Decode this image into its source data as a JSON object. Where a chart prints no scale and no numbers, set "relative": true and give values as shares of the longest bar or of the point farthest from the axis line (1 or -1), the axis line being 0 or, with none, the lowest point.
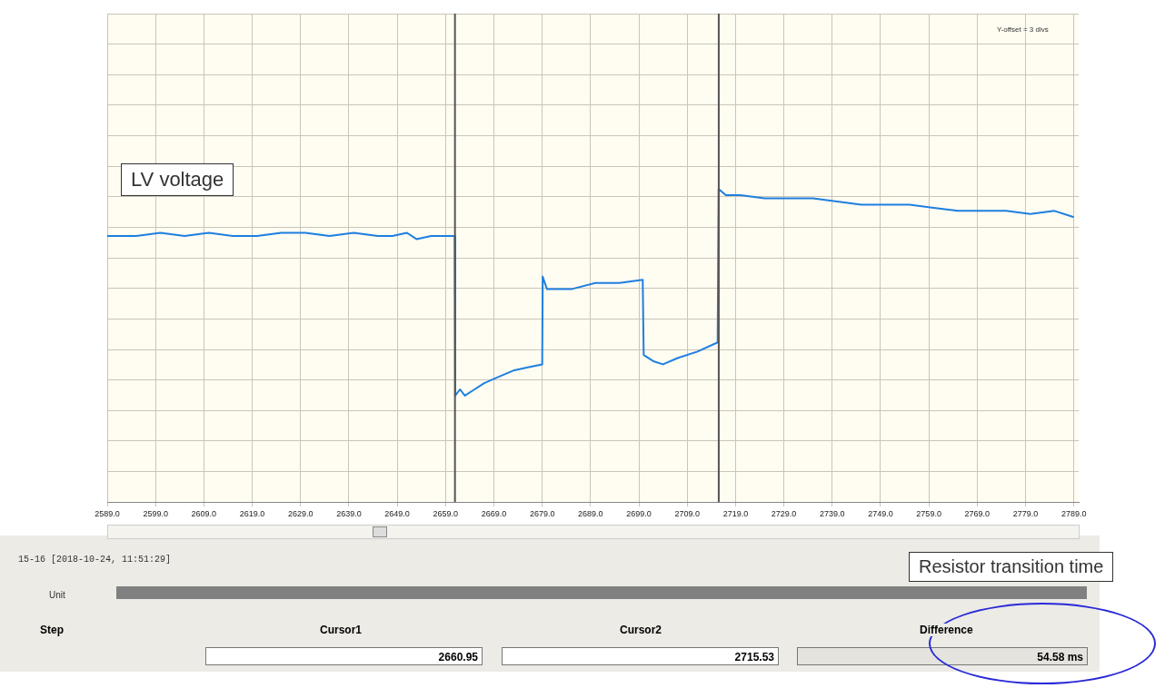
{
  "chart_data": {
    "type": "line",
    "relative": true,
    "xlim": [
      2589,
      2790
    ],
    "xticks": [
      {
        "value": 2589,
        "label": "2589.0"
      },
      {
        "value": 2599,
        "label": "2599.0"
      },
      {
        "value": 2609,
        "label": "2609.0"
      },
      {
        "value": 2619,
        "label": "2619.0"
      },
      {
        "value": 2629,
        "label": "2629.0"
      },
      {
        "value": 2639,
        "label": "2639.0"
      },
      {
        "value": 2649,
        "label": "2649.0"
      },
      {
        "value": 2659,
        "label": "2659.0"
      },
      {
        "value": 2669,
        "label": "2669.0"
      },
      {
        "value": 2679,
        "label": "2679.0"
      },
      {
        "value": 2689,
        "label": "2689.0"
      },
      {
        "value": 2699,
        "label": "2699.0"
      },
      {
        "value": 2709,
        "label": "2709.0"
      },
      {
        "value": 2719,
        "label": "2719.0"
      },
      {
        "value": 2729,
        "label": "2729.0"
      },
      {
        "value": 2739,
        "label": "2739.0"
      },
      {
        "value": 2749,
        "label": "2749.0"
      },
      {
        "value": 2759,
        "label": "2759.0"
      },
      {
        "value": 2769,
        "label": "2769.0"
      },
      {
        "value": 2779,
        "label": "2779.0"
      },
      {
        "value": 2789,
        "label": "2789.0"
      }
    ],
    "grid": true,
    "tick_labels": "x",
    "legend": false,
    "marker": "none",
    "line_style": "solid",
    "series": [
      {
        "name": "LV voltage",
        "color": "#1e7fe0",
        "x": [
          2589,
          2595,
          2600,
          2605,
          2610,
          2615,
          2620,
          2625,
          2630,
          2635,
          2640,
          2645,
          2648,
          2651,
          2653,
          2656,
          2660.9,
          2661,
          2662,
          2663,
          2665,
          2667,
          2670,
          2673,
          2676,
          2679,
          2679.1,
          2680,
          2685,
          2690,
          2695,
          2699.8,
          2700,
          2702,
          2704,
          2707,
          2711,
          2715.3,
          2715.5,
          2717,
          2720,
          2725,
          2730,
          2735,
          2740,
          2745,
          2750,
          2755,
          2760,
          2765,
          2770,
          2775,
          2780,
          2785,
          2789
        ],
        "values": [
          0.85,
          0.85,
          0.86,
          0.85,
          0.86,
          0.85,
          0.85,
          0.86,
          0.86,
          0.85,
          0.86,
          0.85,
          0.85,
          0.86,
          0.84,
          0.85,
          0.85,
          0.34,
          0.36,
          0.34,
          0.36,
          0.38,
          0.4,
          0.42,
          0.43,
          0.44,
          0.72,
          0.68,
          0.68,
          0.7,
          0.7,
          0.71,
          0.47,
          0.45,
          0.44,
          0.46,
          0.48,
          0.51,
          1.0,
          0.98,
          0.98,
          0.97,
          0.97,
          0.97,
          0.96,
          0.95,
          0.95,
          0.95,
          0.94,
          0.93,
          0.93,
          0.93,
          0.92,
          0.93,
          0.91
        ]
      }
    ],
    "ref_lines": [
      {
        "axis": "x",
        "value": 2660.95,
        "color": "#555555"
      },
      {
        "axis": "x",
        "value": 2715.53,
        "color": "#555555"
      }
    ],
    "annotations": [
      "Y-offset = 3 divs",
      "15-16  [2018-10-24, 11:51:29]",
      "Unit",
      "Step",
      "Cursor1",
      "Cursor2",
      "Difference",
      "2660.95",
      "2715.53",
      "54.58 ms",
      "Resistor transition time"
    ]
  }
}
